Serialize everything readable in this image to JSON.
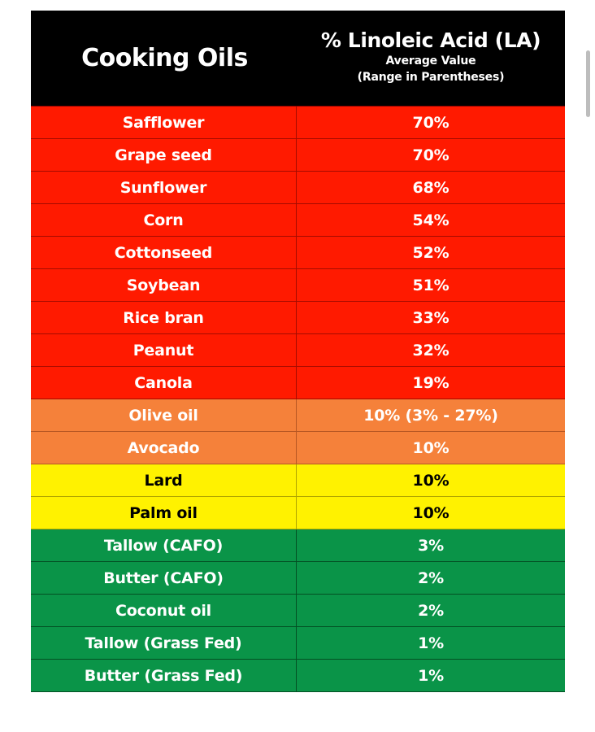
{
  "header": {
    "left_title": "Cooking Oils",
    "right_title": "% Linoleic Acid (LA)",
    "right_sub1": "Average Value",
    "right_sub2": "(Range in Parentheses)"
  },
  "rows": [
    {
      "oil": "Safflower",
      "value": "70%",
      "color": "red"
    },
    {
      "oil": "Grape seed",
      "value": "70%",
      "color": "red"
    },
    {
      "oil": "Sunflower",
      "value": "68%",
      "color": "red"
    },
    {
      "oil": "Corn",
      "value": "54%",
      "color": "red"
    },
    {
      "oil": "Cottonseed",
      "value": "52%",
      "color": "red"
    },
    {
      "oil": "Soybean",
      "value": "51%",
      "color": "red"
    },
    {
      "oil": "Rice bran",
      "value": "33%",
      "color": "red"
    },
    {
      "oil": "Peanut",
      "value": "32%",
      "color": "red"
    },
    {
      "oil": "Canola",
      "value": "19%",
      "color": "red"
    },
    {
      "oil": "Olive oil",
      "value": "10% (3% - 27%)",
      "color": "orange"
    },
    {
      "oil": "Avocado",
      "value": "10%",
      "color": "orange"
    },
    {
      "oil": "Lard",
      "value": "10%",
      "color": "yellow"
    },
    {
      "oil": "Palm oil",
      "value": "10%",
      "color": "yellow"
    },
    {
      "oil": "Tallow (CAFO)",
      "value": "3%",
      "color": "green"
    },
    {
      "oil": "Butter (CAFO)",
      "value": "2%",
      "color": "green"
    },
    {
      "oil": "Coconut oil",
      "value": "2%",
      "color": "green"
    },
    {
      "oil": "Tallow (Grass Fed)",
      "value": "1%",
      "color": "green"
    },
    {
      "oil": "Butter (Grass Fed)",
      "value": "1%",
      "color": "green"
    }
  ],
  "colors": {
    "red": "#ff1a00",
    "orange": "#f5813a",
    "yellow": "#fff200",
    "green": "#0a9448",
    "header_bg": "#000000"
  }
}
